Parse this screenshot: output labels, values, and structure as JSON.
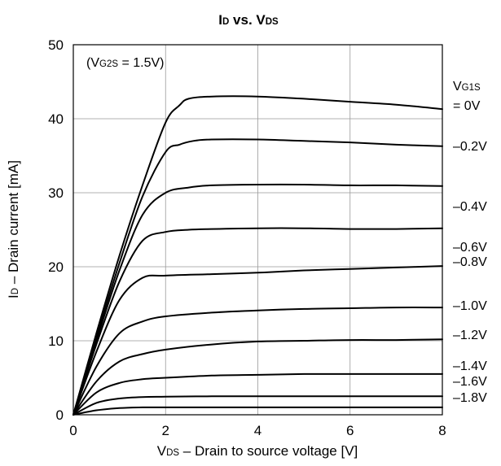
{
  "chart_data": {
    "type": "line",
    "title": {
      "main1": "I",
      "sub1": "D",
      "mid": " vs. V",
      "sub2": "DS"
    },
    "xlabel": {
      "main1": "V",
      "sub1": "DS",
      "rest": " – Drain to source voltage [V]"
    },
    "ylabel": {
      "main1": "I",
      "sub1": "D",
      "rest": " – Drain current [mA]"
    },
    "xlim": [
      0,
      8
    ],
    "ylim": [
      0,
      50
    ],
    "xticks": [
      0,
      2,
      4,
      6,
      8
    ],
    "yticks": [
      0,
      10,
      20,
      30,
      40,
      50
    ],
    "grid": true,
    "annotation": {
      "open": "(V",
      "sub": "G2S",
      "rest": " = 1.5V)"
    },
    "legend_header": {
      "main": "V",
      "sub": "G1S",
      "line2": "= 0V"
    },
    "series": [
      {
        "name": "= 0V",
        "x": [
          0,
          0.5,
          1.0,
          1.5,
          2.0,
          2.3,
          2.5,
          3.0,
          4.0,
          5.0,
          6.0,
          7.0,
          8.0
        ],
        "y": [
          0,
          11,
          21.5,
          31,
          39.5,
          41.8,
          42.7,
          43.0,
          43.0,
          42.7,
          42.3,
          41.9,
          41.3
        ]
      },
      {
        "name": "–0.2V",
        "x": [
          0,
          0.5,
          1.0,
          1.5,
          2.0,
          2.3,
          2.6,
          3.0,
          4.0,
          5.0,
          6.0,
          7.0,
          8.0
        ],
        "y": [
          0,
          10.5,
          20.5,
          29.5,
          35.5,
          36.5,
          37.0,
          37.2,
          37.2,
          37.0,
          36.8,
          36.5,
          36.3
        ]
      },
      {
        "name": "–0.4V",
        "x": [
          0,
          0.5,
          1.0,
          1.5,
          2.0,
          2.5,
          3.0,
          4.0,
          5.0,
          6.0,
          7.0,
          8.0
        ],
        "y": [
          0,
          10,
          19.5,
          27,
          30.0,
          30.7,
          31.0,
          31.1,
          31.1,
          31.0,
          31.0,
          30.9
        ]
      },
      {
        "name": "–0.6V",
        "x": [
          0,
          0.5,
          1.0,
          1.5,
          2.0,
          2.5,
          3.0,
          4.0,
          5.0,
          6.0,
          7.0,
          8.0
        ],
        "y": [
          0,
          9.5,
          18,
          23.5,
          24.7,
          25.0,
          25.1,
          25.2,
          25.2,
          25.1,
          25.1,
          25.2
        ]
      },
      {
        "name": "–0.8V",
        "x": [
          0,
          0.5,
          1.0,
          1.5,
          2.0,
          3.0,
          4.0,
          5.0,
          6.0,
          7.0,
          8.0
        ],
        "y": [
          0,
          8.5,
          15.5,
          18.5,
          18.8,
          19.0,
          19.2,
          19.5,
          19.7,
          19.9,
          20.1
        ]
      },
      {
        "name": "–1.0V",
        "x": [
          0,
          0.5,
          1.0,
          1.5,
          2.0,
          3.0,
          4.0,
          5.0,
          6.0,
          7.0,
          8.0
        ],
        "y": [
          0,
          6.5,
          11,
          12.6,
          13.3,
          13.8,
          14.1,
          14.3,
          14.4,
          14.5,
          14.5
        ]
      },
      {
        "name": "–1.2V",
        "x": [
          0,
          0.5,
          1.0,
          1.5,
          2.0,
          3.0,
          4.0,
          5.0,
          6.0,
          7.0,
          8.0
        ],
        "y": [
          0,
          4.5,
          7.2,
          8.2,
          8.8,
          9.5,
          9.9,
          10.0,
          10.1,
          10.1,
          10.2
        ]
      },
      {
        "name": "–1.4V",
        "x": [
          0,
          0.5,
          1.0,
          1.5,
          2.0,
          3.0,
          4.0,
          5.0,
          6.0,
          7.0,
          8.0
        ],
        "y": [
          0,
          3.0,
          4.3,
          4.8,
          5.0,
          5.3,
          5.4,
          5.5,
          5.5,
          5.5,
          5.5
        ]
      },
      {
        "name": "–1.6V",
        "x": [
          0,
          0.5,
          1.0,
          1.5,
          2.0,
          3.0,
          4.0,
          5.0,
          6.0,
          7.0,
          8.0
        ],
        "y": [
          0,
          1.6,
          2.2,
          2.4,
          2.45,
          2.5,
          2.5,
          2.5,
          2.5,
          2.5,
          2.5
        ]
      },
      {
        "name": "–1.8V",
        "x": [
          0,
          0.5,
          1.0,
          1.5,
          2.0,
          3.0,
          4.0,
          5.0,
          6.0,
          7.0,
          8.0
        ],
        "y": [
          0,
          0.6,
          0.9,
          1.0,
          1.0,
          1.0,
          1.0,
          1.0,
          1.0,
          1.0,
          1.0
        ]
      }
    ]
  }
}
